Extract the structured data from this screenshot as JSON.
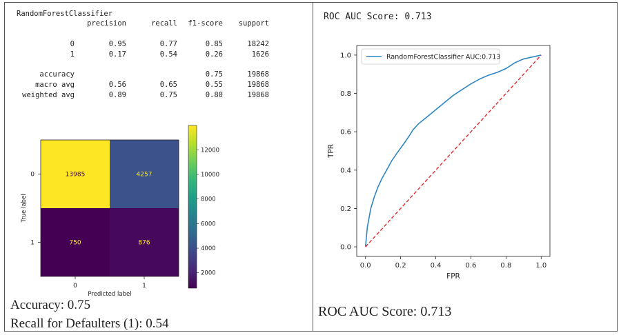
{
  "report": {
    "title": "RandomForestClassifier",
    "headers": [
      "precision",
      "recall",
      "f1-score",
      "support"
    ],
    "rows": [
      {
        "label": "0",
        "precision": "0.95",
        "recall": "0.77",
        "f1": "0.85",
        "support": "18242"
      },
      {
        "label": "1",
        "precision": "0.17",
        "recall": "0.54",
        "f1": "0.26",
        "support": "1626"
      },
      {
        "label": "accuracy",
        "precision": "",
        "recall": "",
        "f1": "0.75",
        "support": "19868"
      },
      {
        "label": "macro avg",
        "precision": "0.56",
        "recall": "0.65",
        "f1": "0.55",
        "support": "19868"
      },
      {
        "label": "weighted avg",
        "precision": "0.89",
        "recall": "0.75",
        "f1": "0.80",
        "support": "19868"
      }
    ]
  },
  "summary": {
    "accuracy_text": "Accuracy: 0.75",
    "recall_text": "Recall for Defaulters (1): 0.54",
    "roc_top_text": "ROC AUC Score: 0.713",
    "roc_bottom_text": "ROC AUC Score: 0.713"
  },
  "chart_data": [
    {
      "type": "heatmap",
      "xlabel": "Predicted label",
      "ylabel": "True label",
      "x_categories": [
        "0",
        "1"
      ],
      "y_categories": [
        "0",
        "1"
      ],
      "values": [
        [
          13985,
          4257
        ],
        [
          750,
          876
        ]
      ],
      "colormap": "viridis",
      "colorbar_ticks": [
        2000,
        4000,
        6000,
        8000,
        10000,
        12000
      ],
      "colorbar_range": [
        750,
        13985
      ],
      "cell_colors": [
        [
          "#fde725",
          "#3b528b"
        ],
        [
          "#440154",
          "#46085c"
        ]
      ],
      "text_colors": [
        [
          "#440154",
          "#fde725"
        ],
        [
          "#fde725",
          "#fde725"
        ]
      ]
    },
    {
      "type": "line",
      "xlabel": "FPR",
      "ylabel": "TPR",
      "xlim": [
        0,
        1
      ],
      "ylim": [
        0,
        1
      ],
      "x_ticks": [
        "0.0",
        "0.2",
        "0.4",
        "0.6",
        "0.8",
        "1.0"
      ],
      "y_ticks": [
        "0.0",
        "0.2",
        "0.4",
        "0.6",
        "0.8",
        "1.0"
      ],
      "legend_position": "top-left",
      "series": [
        {
          "name": "RandomForestClassifier AUC:0.713",
          "color": "#2e86c1",
          "x": [
            0,
            0.005,
            0.01,
            0.02,
            0.03,
            0.04,
            0.05,
            0.07,
            0.09,
            0.12,
            0.15,
            0.18,
            0.22,
            0.25,
            0.27,
            0.3,
            0.34,
            0.38,
            0.42,
            0.46,
            0.5,
            0.55,
            0.6,
            0.65,
            0.7,
            0.75,
            0.8,
            0.85,
            0.9,
            0.95,
            1.0
          ],
          "y": [
            0,
            0.05,
            0.1,
            0.15,
            0.2,
            0.23,
            0.26,
            0.31,
            0.35,
            0.4,
            0.45,
            0.49,
            0.54,
            0.58,
            0.61,
            0.64,
            0.67,
            0.7,
            0.73,
            0.76,
            0.79,
            0.82,
            0.85,
            0.875,
            0.895,
            0.91,
            0.93,
            0.96,
            0.98,
            0.99,
            1.0
          ]
        },
        {
          "name": "",
          "color": "#e32b2b",
          "dashed": true,
          "x": [
            0,
            1
          ],
          "y": [
            0,
            1
          ]
        }
      ]
    }
  ]
}
